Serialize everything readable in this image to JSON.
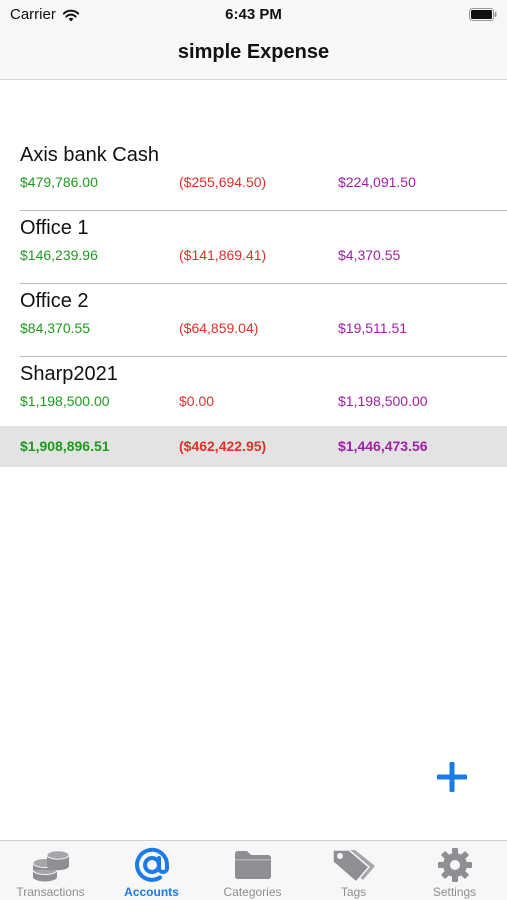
{
  "status_bar": {
    "carrier": "Carrier",
    "time": "6:43 PM"
  },
  "nav": {
    "title": "simple Expense"
  },
  "colors": {
    "income": "#1f9a1f",
    "expense": "#e0302a",
    "balance": "#a020a8",
    "accent": "#1a7ae8",
    "tab_inactive": "#8e8e93"
  },
  "accounts": [
    {
      "name": "Axis bank Cash",
      "income": "$479,786.00",
      "expense": "($255,694.50)",
      "balance": "$224,091.50"
    },
    {
      "name": "Office 1",
      "income": "$146,239.96",
      "expense": "($141,869.41)",
      "balance": "$4,370.55"
    },
    {
      "name": "Office 2",
      "income": "$84,370.55",
      "expense": "($64,859.04)",
      "balance": "$19,511.51"
    },
    {
      "name": "Sharp2021",
      "income": "$1,198,500.00",
      "expense": "$0.00",
      "balance": "$1,198,500.00"
    }
  ],
  "totals": {
    "income": "$1,908,896.51",
    "expense": "($462,422.95)",
    "balance": "$1,446,473.56"
  },
  "add_button": {
    "icon": "plus-icon"
  },
  "tabs": [
    {
      "label": "Transactions",
      "icon": "coins-icon",
      "active": false
    },
    {
      "label": "Accounts",
      "icon": "at-icon",
      "active": true
    },
    {
      "label": "Categories",
      "icon": "folder-icon",
      "active": false
    },
    {
      "label": "Tags",
      "icon": "tags-icon",
      "active": false
    },
    {
      "label": "Settings",
      "icon": "gear-icon",
      "active": false
    }
  ]
}
